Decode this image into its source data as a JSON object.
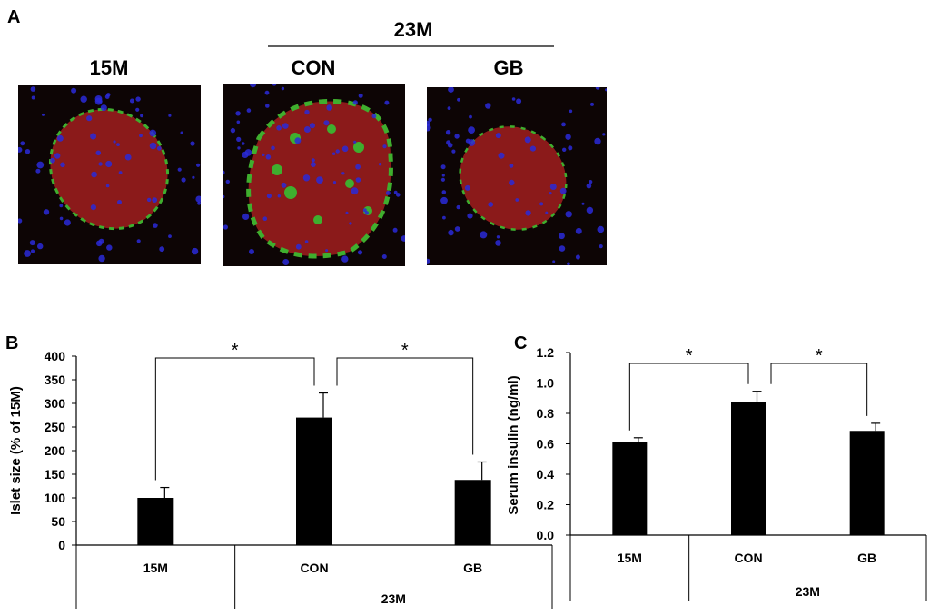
{
  "panel_a": {
    "letter": "A",
    "group_label": "23M",
    "images": [
      {
        "label": "15M",
        "desc": "islet-15m"
      },
      {
        "label": "CON",
        "desc": "islet-23m-con"
      },
      {
        "label": "GB",
        "desc": "islet-23m-gb"
      }
    ],
    "colors": {
      "background": "#0d0505",
      "islet": "#8b1a1a",
      "nuclei": "#2a2ad8",
      "cells": "#3fae2e"
    }
  },
  "chart_data": [
    {
      "type": "bar",
      "panel": "B",
      "categories": [
        "15M",
        "CON",
        "GB"
      ],
      "values": [
        100,
        270,
        138
      ],
      "errors": [
        22,
        52,
        38
      ],
      "ylabel": "Islet size (% of 15M)",
      "ylim": [
        0,
        400
      ],
      "yticks": [
        "0",
        "50",
        "100",
        "150",
        "200",
        "250",
        "300",
        "350",
        "400"
      ],
      "group_label": "23M",
      "significance": [
        {
          "from": 0,
          "to": 1,
          "label": "*"
        },
        {
          "from": 1,
          "to": 2,
          "label": "*"
        }
      ],
      "bar_color": "#000000"
    },
    {
      "type": "bar",
      "panel": "C",
      "categories": [
        "15M",
        "CON",
        "GB"
      ],
      "values": [
        0.61,
        0.875,
        0.685
      ],
      "errors": [
        0.03,
        0.07,
        0.05
      ],
      "ylabel": "Serum insulin (ng/ml)",
      "ylim": [
        0,
        1.2
      ],
      "yticks": [
        "0.0",
        "0.2",
        "0.4",
        "0.6",
        "0.8",
        "1.0",
        "1.2"
      ],
      "group_label": "23M",
      "significance": [
        {
          "from": 0,
          "to": 1,
          "label": "*"
        },
        {
          "from": 1,
          "to": 2,
          "label": "*"
        }
      ],
      "bar_color": "#000000"
    }
  ]
}
